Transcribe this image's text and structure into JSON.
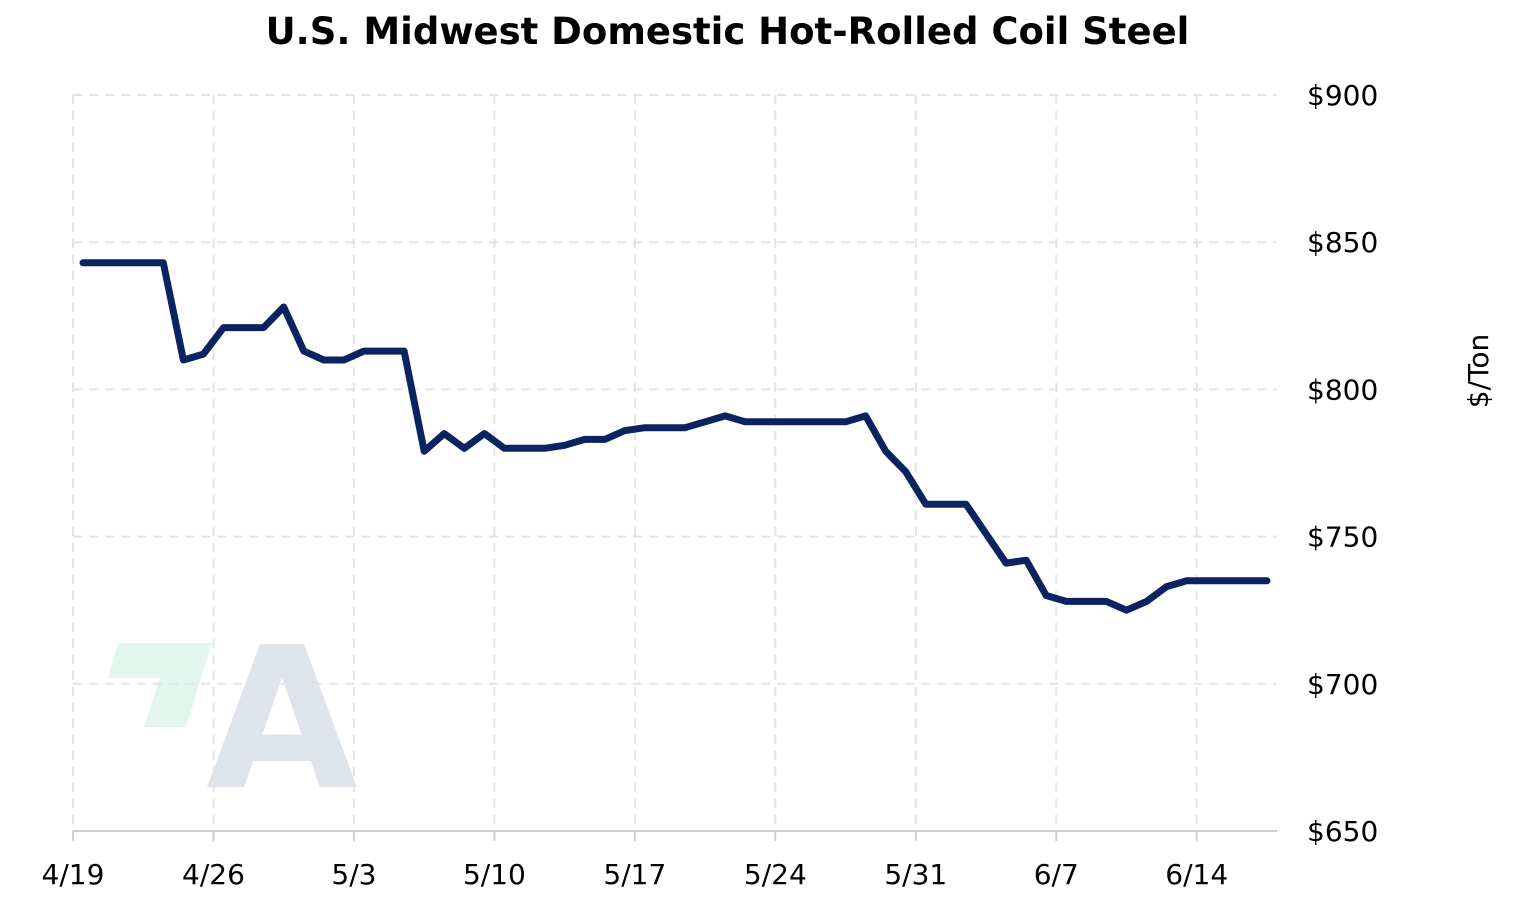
{
  "chart_data": {
    "type": "line",
    "title": "U.S. Midwest Domestic Hot-Rolled Coil Steel",
    "xlabel": "",
    "ylabel": "$/Ton",
    "ylim": [
      650,
      900
    ],
    "y_ticks": [
      650,
      700,
      750,
      800,
      850,
      900
    ],
    "y_tick_labels": [
      "$650",
      "$700",
      "$750",
      "$800",
      "$850",
      "$900"
    ],
    "x_tick_labels": [
      "4/19",
      "4/26",
      "5/3",
      "5/10",
      "5/17",
      "5/24",
      "5/31",
      "6/7",
      "6/14"
    ],
    "x_tick_days": [
      0,
      7,
      14,
      21,
      28,
      35,
      42,
      49,
      56
    ],
    "xlim_days": [
      0,
      60
    ],
    "grid": true,
    "line_color": "#0b2360",
    "series": [
      {
        "x_days": [
          0.5,
          1.5,
          2.5,
          3.5,
          4.5,
          5.5,
          6.5,
          7.5,
          8.5,
          9.5,
          10.5,
          11.5,
          12.5,
          13.5,
          14.5,
          15.5,
          16.5,
          17.5,
          18.5,
          19.5,
          20.5,
          21.5,
          22.5,
          23.5,
          24.5,
          25.5,
          26.5,
          27.5,
          28.5,
          29.5,
          30.5,
          31.5,
          32.5,
          33.5,
          34.5,
          35.5,
          36.5,
          37.5,
          38.5,
          39.5,
          40.5,
          41.5,
          42.5,
          43.5,
          44.5,
          45.5,
          46.5,
          47.5,
          48.5,
          49.5,
          50.5,
          51.5,
          52.5,
          53.5,
          54.5,
          55.5,
          56.5,
          57.5,
          58.5,
          59.5
        ],
        "values": [
          843,
          843,
          843,
          843,
          843,
          810,
          812,
          821,
          821,
          821,
          828,
          813,
          810,
          810,
          813,
          813,
          813,
          779,
          785,
          780,
          785,
          780,
          780,
          780,
          781,
          783,
          783,
          786,
          787,
          787,
          787,
          789,
          791,
          789,
          789,
          789,
          789,
          789,
          789,
          791,
          779,
          772,
          761,
          761,
          761,
          751,
          741,
          742,
          730,
          728,
          728,
          728,
          725,
          728,
          733,
          735,
          735,
          735,
          735,
          735
        ]
      }
    ]
  },
  "watermark": {
    "accent_color": "#e3f6ee",
    "letter_color": "#dfe3ea",
    "letter": "A"
  }
}
